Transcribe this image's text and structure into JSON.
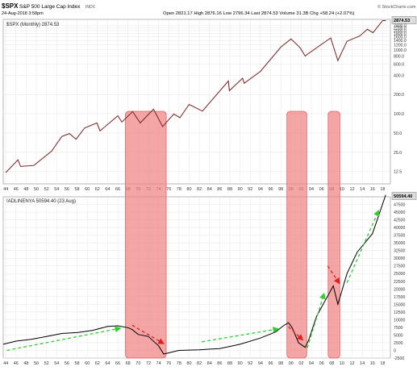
{
  "header": {
    "ticker": "$SPX",
    "name": "S&P 500 Large Cap Index",
    "exchange": "INDX",
    "date": "24-Aug-2018 3:58pm",
    "ohlc_text": "Open 2821.17  High 2876.16  Low 2796.34  Last 2874.53  Volume 31.3B  Chg +58.24 (+2.07%)",
    "credit": "© StockCharts.com"
  },
  "colors": {
    "price_line": "#7a1f1f",
    "ad_line": "#000000",
    "recession_fill": "#f08080",
    "recession_stroke": "#e06060",
    "green_arrow": "#33cc33",
    "red_arrow": "#e02020",
    "grid": "#e4e4e4",
    "last_label_bg": "#dddddd"
  },
  "chart_data": [
    {
      "type": "line",
      "legend": "$SPX (Monthly) 2874.53",
      "scale": "log",
      "last_value_label": "2874.53",
      "ylim": [
        8,
        3000
      ],
      "y_ticks": [
        "2400.0",
        "2200.0",
        "2000.0",
        "1800.0",
        "1600.0",
        "1400.0",
        "1200.0",
        "1000.0",
        "800.0",
        "600.0",
        "400.0",
        "200.0",
        "100.0",
        "50.0",
        "25.0",
        "12.5"
      ],
      "x_tick_labels": [
        "44",
        "46",
        "48",
        "50",
        "52",
        "54",
        "56",
        "58",
        "60",
        "62",
        "64",
        "66",
        "68",
        "70",
        "72",
        "74",
        "76",
        "78",
        "80",
        "82",
        "84",
        "86",
        "88",
        "90",
        "92",
        "94",
        "96",
        "98",
        "00",
        "02",
        "04",
        "06",
        "08",
        "10",
        "12",
        "14",
        "16",
        "18"
      ],
      "grid": true,
      "series": [
        {
          "x": [
            1944.0,
            1946.4,
            1946.9,
            1949.5,
            1953.0,
            1955.0,
            1956.5,
            1957.8,
            1959.5,
            1961.9,
            1962.5,
            1966.0,
            1966.8,
            1968.9,
            1970.4,
            1973.0,
            1974.8,
            1977.0,
            1978.2,
            1980.0,
            1982.6,
            1987.7,
            1987.9,
            1990.5,
            1990.8,
            1994.0,
            1998.0,
            2000.0,
            2001.8,
            2002.8,
            2003.2,
            2007.8,
            2009.2,
            2011.0,
            2013.5,
            2015.0,
            2016.1,
            2018.0,
            2018.65
          ],
          "y": [
            12,
            19,
            15,
            15.5,
            26,
            44,
            49,
            40,
            60,
            72,
            54,
            93,
            74,
            108,
            72,
            118,
            63,
            99,
            87,
            140,
            110,
            325,
            230,
            360,
            300,
            460,
            1100,
            1480,
            1080,
            800,
            850,
            1540,
            680,
            1360,
            1650,
            2100,
            1850,
            2870,
            2874.53
          ]
        }
      ]
    },
    {
      "type": "line",
      "legend": "!ADLINENYA 50594.40 (23 Aug)",
      "last_value_label": "50594.40",
      "ylim": [
        -2500,
        50000
      ],
      "y_ticks": [
        "47500",
        "45000",
        "42500",
        "40000",
        "37500",
        "35000",
        "32500",
        "30000",
        "27500",
        "25000",
        "22500",
        "20000",
        "17500",
        "15000",
        "12500",
        "10000",
        "7500",
        "5000",
        "2500",
        "0",
        "-2500"
      ],
      "x_tick_labels": [
        "44",
        "46",
        "48",
        "50",
        "52",
        "54",
        "56",
        "58",
        "60",
        "62",
        "64",
        "66",
        "68",
        "70",
        "72",
        "74",
        "76",
        "78",
        "80",
        "82",
        "84",
        "86",
        "88",
        "90",
        "92",
        "94",
        "96",
        "98",
        "00",
        "02",
        "04",
        "06",
        "08",
        "10",
        "12",
        "14",
        "16",
        "18"
      ],
      "grid": true,
      "series": [
        {
          "x": [
            1943.5,
            1946.0,
            1949.0,
            1952.0,
            1955.0,
            1958.0,
            1961.0,
            1964.0,
            1966.0,
            1968.0,
            1968.8,
            1970.0,
            1972.0,
            1974.0,
            1975.0,
            1978.0,
            1982.0,
            1986.0,
            1990.0,
            1994.0,
            1997.0,
            1998.5,
            1999.5,
            2000.2,
            2001.5,
            2002.8,
            2003.5,
            2005.0,
            2007.3,
            2008.3,
            2009.2,
            2011.0,
            2013.0,
            2015.0,
            2016.0,
            2018.6
          ],
          "y": [
            2000,
            3000,
            3600,
            4500,
            5500,
            5800,
            6500,
            7800,
            8000,
            7400,
            6800,
            5200,
            4500,
            1500,
            -1200,
            0,
            200,
            600,
            2000,
            4000,
            6000,
            8000,
            9000,
            7500,
            2500,
            1000,
            3500,
            11000,
            18000,
            21000,
            15000,
            25000,
            32000,
            36000,
            38000,
            50594.4
          ]
        }
      ]
    }
  ],
  "recession_bands": [
    {
      "x0": 1967.5,
      "x1": 1975.5
    },
    {
      "x0": 1999.2,
      "x1": 2003.1
    },
    {
      "x0": 2007.3,
      "x1": 2009.6
    }
  ],
  "trend_arrows": [
    {
      "color": "green",
      "from": [
        1944.2,
        0
      ],
      "to": [
        1966.5,
        7200
      ]
    },
    {
      "color": "red",
      "from": [
        1968.8,
        8200
      ],
      "to": [
        1975.0,
        2200
      ]
    },
    {
      "color": "green",
      "from": [
        1982.5,
        2800
      ],
      "to": [
        1997.5,
        7000
      ]
    },
    {
      "color": "red",
      "from": [
        1999.5,
        7700
      ],
      "to": [
        2002.3,
        3400
      ]
    },
    {
      "color": "green",
      "from": [
        2003.2,
        800
      ],
      "to": [
        2006.5,
        18500
      ]
    },
    {
      "color": "red",
      "from": [
        2007.2,
        27500
      ],
      "to": [
        2009.5,
        21800
      ]
    },
    {
      "color": "green",
      "from": [
        2011.0,
        22000
      ],
      "to": [
        2017.2,
        45500
      ]
    }
  ]
}
